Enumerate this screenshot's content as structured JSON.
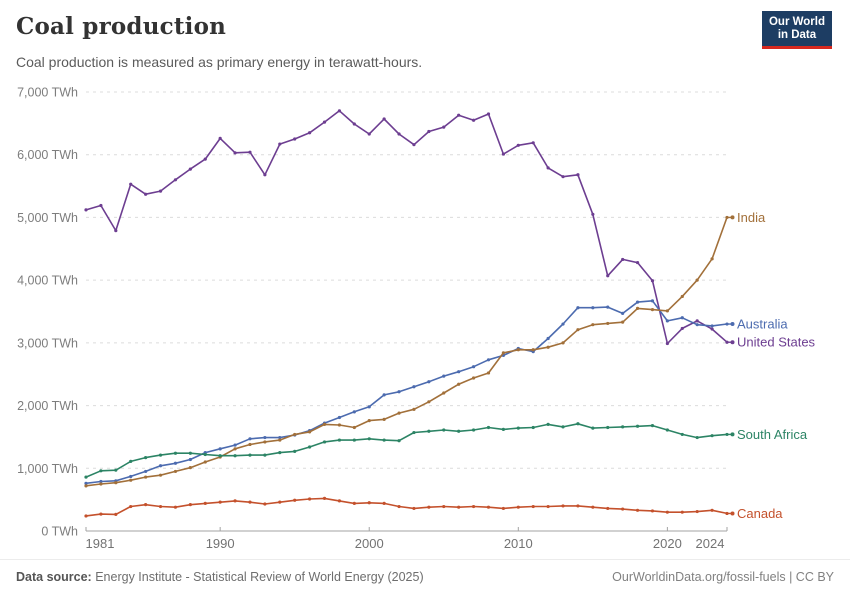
{
  "header": {
    "logo": {
      "line1": "Our World",
      "line2": "in Data",
      "bg": "#1d3d63",
      "accent": "#d7281f"
    }
  },
  "footer": {
    "source_label": "Data source:",
    "source_text": "Energy Institute - Statistical Review of World Energy (2025)",
    "right_text": "OurWorldinData.org/fossil-fuels | CC BY"
  },
  "chart_data": {
    "type": "line",
    "title": "Coal production",
    "subtitle": "Coal production is measured as primary energy in terawatt-hours.",
    "unit": "TWh",
    "xlim": [
      1981,
      2024
    ],
    "ylim": [
      0,
      7000
    ],
    "grid": "horizontal-dashed",
    "legend_position": "end-of-line-labels",
    "xticks": [
      1981,
      1990,
      2000,
      2010,
      2020,
      2024
    ],
    "xtick_labels": [
      "1981",
      "1990",
      "2000",
      "2010",
      "2020",
      "2024"
    ],
    "yticks": [
      0,
      1000,
      2000,
      3000,
      4000,
      5000,
      6000,
      7000
    ],
    "ytick_labels": [
      "0 TWh",
      "1,000 TWh",
      "2,000 TWh",
      "3,000 TWh",
      "4,000 TWh",
      "5,000 TWh",
      "6,000 TWh",
      "7,000 TWh"
    ],
    "x": [
      1981,
      1982,
      1983,
      1984,
      1985,
      1986,
      1987,
      1988,
      1989,
      1990,
      1991,
      1992,
      1993,
      1994,
      1995,
      1996,
      1997,
      1998,
      1999,
      2000,
      2001,
      2002,
      2003,
      2004,
      2005,
      2006,
      2007,
      2008,
      2009,
      2010,
      2011,
      2012,
      2013,
      2014,
      2015,
      2016,
      2017,
      2018,
      2019,
      2020,
      2021,
      2022,
      2023,
      2024
    ],
    "series": [
      {
        "name": "United States",
        "color": "#6d3e91",
        "values": [
          5120,
          5190,
          4790,
          5530,
          5370,
          5420,
          5600,
          5770,
          5930,
          6260,
          6030,
          6040,
          5680,
          6170,
          6250,
          6350,
          6520,
          6700,
          6490,
          6330,
          6570,
          6330,
          6160,
          6370,
          6440,
          6630,
          6550,
          6650,
          6010,
          6150,
          6190,
          5790,
          5650,
          5680,
          5050,
          4070,
          4330,
          4280,
          3990,
          2990,
          3230,
          3350,
          3220,
          3010
        ]
      },
      {
        "name": "Australia",
        "color": "#4c6baf",
        "values": [
          760,
          790,
          800,
          870,
          950,
          1040,
          1080,
          1140,
          1250,
          1310,
          1370,
          1470,
          1490,
          1490,
          1530,
          1600,
          1720,
          1810,
          1900,
          1980,
          2170,
          2220,
          2300,
          2380,
          2470,
          2540,
          2620,
          2730,
          2800,
          2910,
          2860,
          3070,
          3300,
          3560,
          3560,
          3570,
          3470,
          3650,
          3670,
          3350,
          3400,
          3290,
          3270,
          3300
        ]
      },
      {
        "name": "India",
        "color": "#a2703a",
        "values": [
          720,
          750,
          770,
          810,
          860,
          890,
          950,
          1010,
          1100,
          1180,
          1310,
          1380,
          1420,
          1450,
          1540,
          1580,
          1700,
          1690,
          1650,
          1760,
          1780,
          1880,
          1940,
          2060,
          2200,
          2340,
          2440,
          2520,
          2840,
          2890,
          2890,
          2930,
          3000,
          3210,
          3290,
          3310,
          3330,
          3550,
          3530,
          3510,
          3740,
          4000,
          4340,
          5000
        ]
      },
      {
        "name": "South Africa",
        "color": "#2c8465",
        "values": [
          860,
          960,
          970,
          1110,
          1170,
          1210,
          1240,
          1240,
          1220,
          1200,
          1200,
          1210,
          1210,
          1250,
          1270,
          1340,
          1420,
          1450,
          1450,
          1470,
          1450,
          1440,
          1570,
          1590,
          1610,
          1590,
          1610,
          1650,
          1620,
          1640,
          1650,
          1700,
          1660,
          1710,
          1640,
          1650,
          1660,
          1670,
          1680,
          1610,
          1540,
          1490,
          1520,
          1540
        ]
      },
      {
        "name": "Canada",
        "color": "#c4512c",
        "values": [
          240,
          270,
          265,
          390,
          420,
          390,
          380,
          420,
          440,
          460,
          480,
          460,
          430,
          460,
          490,
          510,
          520,
          480,
          440,
          450,
          440,
          390,
          360,
          380,
          390,
          380,
          390,
          380,
          360,
          380,
          390,
          390,
          400,
          400,
          380,
          360,
          350,
          330,
          320,
          300,
          300,
          310,
          330,
          280
        ]
      }
    ]
  }
}
